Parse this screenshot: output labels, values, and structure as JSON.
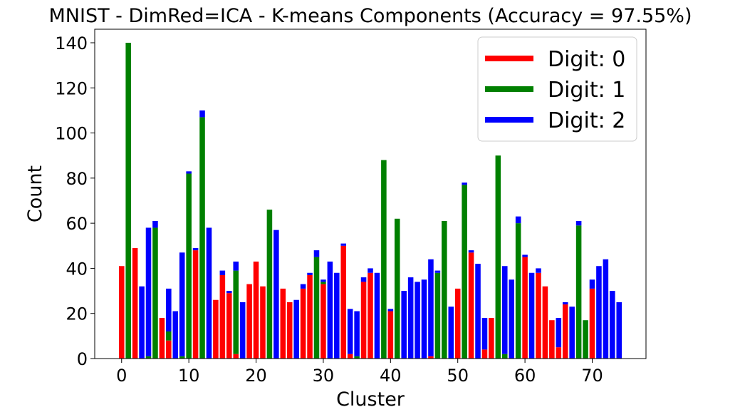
{
  "chart_data": {
    "type": "bar",
    "stacked": true,
    "title": "MNIST - DimRed=ICA - K-means Components (Accuracy = 97.55%)",
    "xlabel": "Cluster",
    "ylabel": "Count",
    "xlim": [
      -4,
      78
    ],
    "ylim": [
      0,
      146
    ],
    "xticks": [
      0,
      10,
      20,
      30,
      40,
      50,
      60,
      70
    ],
    "yticks": [
      0,
      20,
      40,
      60,
      80,
      100,
      120,
      140
    ],
    "grid": false,
    "legend_position": "top-right",
    "series": [
      {
        "name": "Digit: 0",
        "color": "#ff0000",
        "values": [
          41,
          0,
          49,
          0,
          0,
          0,
          18,
          8,
          0,
          0,
          0,
          48,
          0,
          0,
          26,
          37,
          29,
          2,
          0,
          33,
          43,
          32,
          0,
          0,
          31,
          25,
          0,
          31,
          37,
          0,
          33,
          0,
          0,
          50,
          2,
          0,
          34,
          38,
          0,
          0,
          21,
          0,
          0,
          0,
          0,
          0,
          1,
          0,
          0,
          0,
          31,
          0,
          47,
          0,
          4,
          18,
          0,
          0,
          0,
          0,
          45,
          0,
          38,
          32,
          17,
          5,
          24,
          0,
          0,
          0,
          31,
          0,
          0,
          0,
          0
        ]
      },
      {
        "name": "Digit: 1",
        "color": "#008000",
        "values": [
          0,
          140,
          0,
          0,
          1,
          58,
          0,
          4,
          0,
          1,
          82,
          0,
          107,
          0,
          0,
          0,
          0,
          37,
          0,
          0,
          0,
          0,
          66,
          0,
          0,
          0,
          0,
          0,
          0,
          45,
          1,
          0,
          0,
          0,
          0,
          1,
          0,
          0,
          0,
          88,
          0,
          62,
          0,
          0,
          0,
          0,
          0,
          38,
          61,
          0,
          0,
          77,
          0,
          0,
          0,
          0,
          90,
          2,
          0,
          60,
          0,
          0,
          0,
          0,
          0,
          0,
          0,
          0,
          59,
          17,
          0,
          0,
          0,
          0,
          0
        ]
      },
      {
        "name": "Digit: 2",
        "color": "#0000ff",
        "values": [
          0,
          0,
          0,
          32,
          57,
          3,
          0,
          19,
          21,
          46,
          1,
          1,
          3,
          58,
          0,
          2,
          1,
          4,
          25,
          0,
          0,
          0,
          0,
          57,
          0,
          0,
          26,
          2,
          1,
          3,
          1,
          43,
          38,
          1,
          20,
          20,
          2,
          2,
          38,
          0,
          1,
          0,
          30,
          36,
          34,
          35,
          43,
          1,
          0,
          23,
          0,
          1,
          1,
          42,
          14,
          0,
          0,
          39,
          35,
          3,
          1,
          38,
          2,
          0,
          0,
          13,
          1,
          23,
          2,
          0,
          4,
          41,
          44,
          30,
          25
        ]
      }
    ]
  }
}
